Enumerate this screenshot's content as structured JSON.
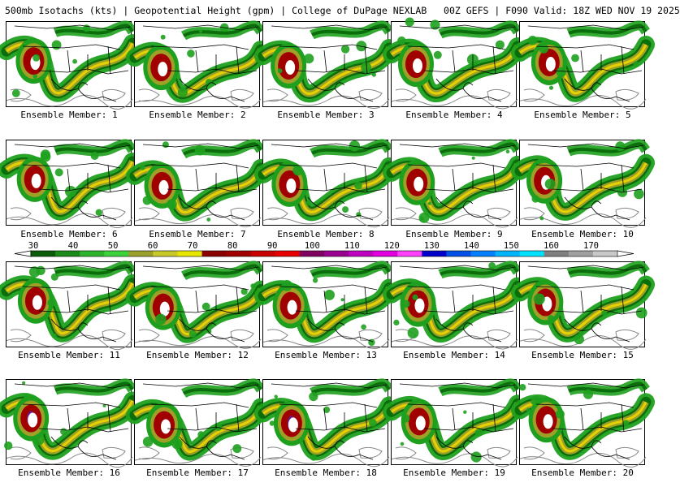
{
  "header": {
    "title": "500mb Isotachs (kts) | Geopotential Height (gpm) | College of DuPage NEXLAB   00Z GEFS | F090 Valid: 18Z WED NOV 19 2025"
  },
  "members": [
    {
      "label": "Ensemble Member: 1"
    },
    {
      "label": "Ensemble Member: 2"
    },
    {
      "label": "Ensemble Member: 3"
    },
    {
      "label": "Ensemble Member: 4"
    },
    {
      "label": "Ensemble Member: 5"
    },
    {
      "label": "Ensemble Member: 6"
    },
    {
      "label": "Ensemble Member: 7"
    },
    {
      "label": "Ensemble Member: 8"
    },
    {
      "label": "Ensemble Member: 9"
    },
    {
      "label": "Ensemble Member: 10"
    },
    {
      "label": "Ensemble Member: 11"
    },
    {
      "label": "Ensemble Member: 12"
    },
    {
      "label": "Ensemble Member: 13"
    },
    {
      "label": "Ensemble Member: 14"
    },
    {
      "label": "Ensemble Member: 15"
    },
    {
      "label": "Ensemble Member: 16"
    },
    {
      "label": "Ensemble Member: 17"
    },
    {
      "label": "Ensemble Member: 18"
    },
    {
      "label": "Ensemble Member: 19"
    },
    {
      "label": "Ensemble Member: 20"
    }
  ],
  "colorbar": {
    "labels": [
      "30",
      "40",
      "50",
      "60",
      "70",
      "80",
      "90",
      "100",
      "110",
      "120",
      "130",
      "140",
      "150",
      "160",
      "170"
    ],
    "colors": [
      "#0a5c0a",
      "#1a8a1a",
      "#2db42d",
      "#3cd23c",
      "#9aa028",
      "#c8c828",
      "#e6e600",
      "#8b0000",
      "#a00000",
      "#c80000",
      "#e60000",
      "#800060",
      "#9a0090",
      "#c000c0",
      "#e000e0",
      "#ff40ff",
      "#0000c8",
      "#0050e6",
      "#0080ff",
      "#00b4ff",
      "#00e0ff",
      "#808080",
      "#a0a0a0",
      "#c8c8c8"
    ]
  },
  "map_colors": {
    "green": "#1ea01e",
    "green_dark": "#0a6e0a",
    "olive": "#a0a028",
    "yellow": "#e6d200",
    "red": "#a00000",
    "purple": "#6a1a8a",
    "contour_gray": "#888888",
    "coast": "#000000"
  }
}
